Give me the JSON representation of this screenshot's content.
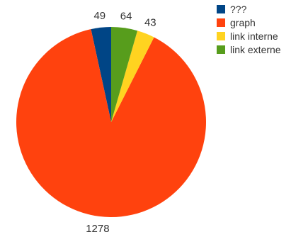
{
  "chart_data": {
    "type": "pie",
    "title": "",
    "start_angle_deg": 0,
    "direction": "counterclockwise",
    "slices": [
      {
        "label": "???",
        "value": 49,
        "color": "#004586"
      },
      {
        "label": "graph",
        "value": 1278,
        "color": "#ff420e"
      },
      {
        "label": "link interne",
        "value": 43,
        "color": "#ffd320"
      },
      {
        "label": "link externe",
        "value": 64,
        "color": "#579d1c"
      }
    ],
    "data_labels": [
      "49",
      "1278",
      "43",
      "64"
    ],
    "legend": {
      "position": "top-right",
      "entries": [
        "???",
        "graph",
        "link interne",
        "link externe"
      ]
    }
  }
}
